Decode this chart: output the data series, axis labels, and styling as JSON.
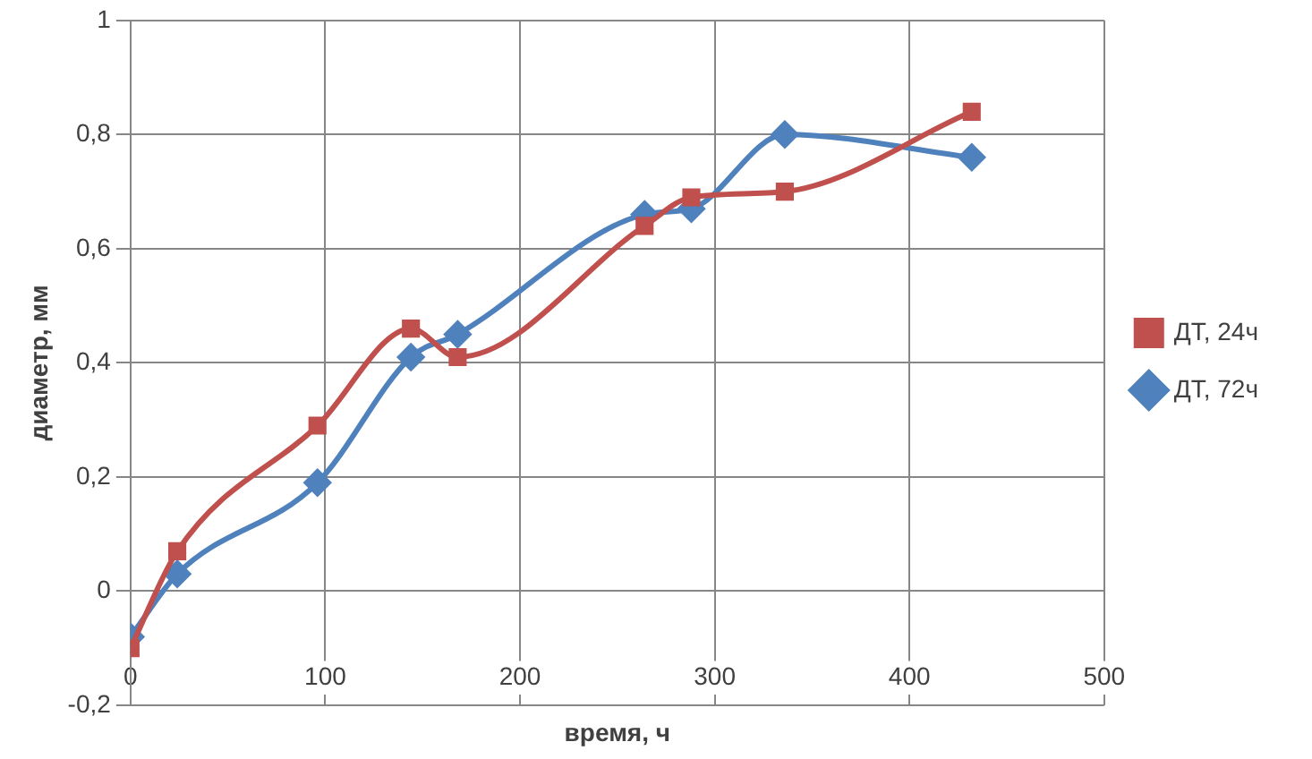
{
  "chart_data": {
    "type": "line",
    "xlabel": "время, ч",
    "ylabel": "диаметр, мм",
    "xlim": [
      0,
      500
    ],
    "xticks": [
      0,
      100,
      200,
      300,
      400,
      500
    ],
    "ylim": [
      -0.2,
      1
    ],
    "yticks": [
      {
        "value": -0.2,
        "label": "-0,2"
      },
      {
        "value": 0,
        "label": "0"
      },
      {
        "value": 0.2,
        "label": "0,2"
      },
      {
        "value": 0.4,
        "label": "0,4"
      },
      {
        "value": 0.6,
        "label": "0,6"
      },
      {
        "value": 0.8,
        "label": "0,8"
      },
      {
        "value": 1,
        "label": "1"
      }
    ],
    "grid": true,
    "legend": "right",
    "series": [
      {
        "name": "ДТ, 24ч",
        "color": "#c0504d",
        "marker": "square",
        "x": [
          0,
          24,
          96,
          144,
          168,
          264,
          288,
          336,
          432
        ],
        "values": [
          -0.1,
          0.07,
          0.29,
          0.46,
          0.41,
          0.64,
          0.69,
          0.7,
          0.84
        ]
      },
      {
        "name": "ДТ, 72ч",
        "color": "#4f81bd",
        "marker": "diamond",
        "x": [
          0,
          24,
          96,
          144,
          168,
          264,
          288,
          336,
          432
        ],
        "values": [
          -0.08,
          0.03,
          0.19,
          0.41,
          0.45,
          0.66,
          0.67,
          0.8,
          0.76
        ]
      }
    ]
  }
}
